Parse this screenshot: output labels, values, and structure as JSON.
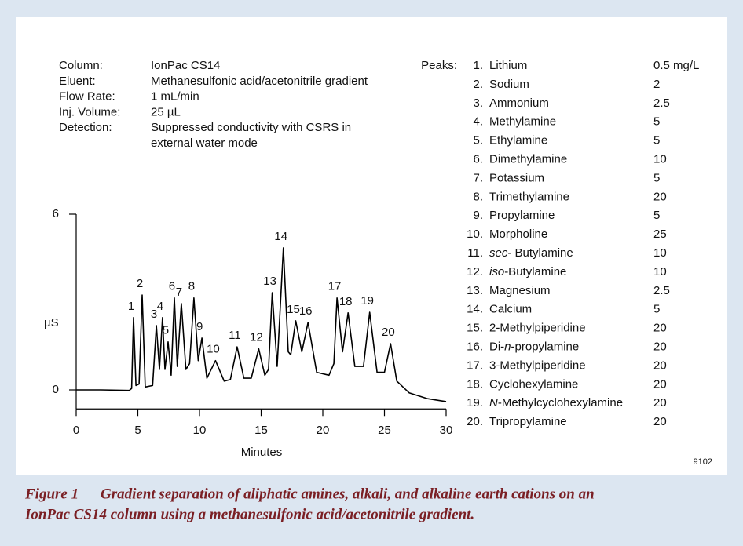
{
  "conditions": [
    {
      "label": "Column:",
      "value": [
        "IonPac CS14"
      ]
    },
    {
      "label": "Eluent:",
      "value": [
        "Methanesulfonic acid/acetonitrile gradient"
      ]
    },
    {
      "label": "Flow Rate:",
      "value": [
        "1 mL/min"
      ]
    },
    {
      "label": "Inj. Volume:",
      "value": [
        "25 µL"
      ]
    },
    {
      "label": "Detection:",
      "value": [
        "Suppressed conductivity with CSRS in",
        "external water mode"
      ]
    }
  ],
  "peaks_heading": "Peaks:",
  "peaks": [
    {
      "num": "1.",
      "name": [
        "Lithium"
      ],
      "conc": "0.5 mg/L"
    },
    {
      "num": "2.",
      "name": [
        "Sodium"
      ],
      "conc": "2"
    },
    {
      "num": "3.",
      "name": [
        "Ammonium"
      ],
      "conc": "2.5"
    },
    {
      "num": "4.",
      "name": [
        "Methylamine"
      ],
      "conc": "5"
    },
    {
      "num": "5.",
      "name": [
        "Ethylamine"
      ],
      "conc": "5"
    },
    {
      "num": "6.",
      "name": [
        "Dimethylamine"
      ],
      "conc": "10"
    },
    {
      "num": "7.",
      "name": [
        "Potassium"
      ],
      "conc": "5"
    },
    {
      "num": "8.",
      "name": [
        "Trimethylamine"
      ],
      "conc": "20"
    },
    {
      "num": "9.",
      "name": [
        "Propylamine"
      ],
      "conc": "5"
    },
    {
      "num": "10.",
      "name": [
        "Morpholine"
      ],
      "conc": "25"
    },
    {
      "num": "11.",
      "name": [
        {
          "text": "sec",
          "italic": true
        },
        "- Butylamine"
      ],
      "conc": "10"
    },
    {
      "num": "12.",
      "name": [
        {
          "text": "iso",
          "italic": true
        },
        "-Butylamine"
      ],
      "conc": "10"
    },
    {
      "num": "13.",
      "name": [
        "Magnesium"
      ],
      "conc": "2.5"
    },
    {
      "num": "14.",
      "name": [
        "Calcium"
      ],
      "conc": "5"
    },
    {
      "num": "15.",
      "name": [
        "2-Methylpiperidine"
      ],
      "conc": "20"
    },
    {
      "num": "16.",
      "name": [
        "Di-",
        {
          "text": "n",
          "italic": true
        },
        "-propylamine"
      ],
      "conc": "20"
    },
    {
      "num": "17.",
      "name": [
        "3-Methylpiperidine"
      ],
      "conc": "20"
    },
    {
      "num": "18.",
      "name": [
        "Cyclohexylamine"
      ],
      "conc": "20"
    },
    {
      "num": "19.",
      "name": [
        {
          "text": "N",
          "italic": true
        },
        "-Methylcyclohexylamine"
      ],
      "conc": "20"
    },
    {
      "num": "20.",
      "name": [
        "Tripropylamine"
      ],
      "conc": "20"
    }
  ],
  "chart_data": {
    "type": "line",
    "ylabel": "µS",
    "xlabel": "Minutes",
    "color": "#000000",
    "x": [
      0,
      2,
      4.3,
      4.5,
      4.65,
      4.85,
      5.1,
      5.35,
      5.6,
      6.2,
      6.5,
      6.75,
      7.0,
      7.2,
      7.45,
      7.7,
      7.96,
      8.2,
      8.53,
      8.9,
      9.2,
      9.55,
      9.9,
      10.2,
      10.6,
      11.3,
      12.0,
      12.5,
      13.05,
      13.6,
      14.2,
      14.8,
      15.3,
      15.6,
      15.9,
      16.3,
      16.8,
      17.2,
      17.4,
      17.8,
      18.3,
      18.8,
      19.5,
      20.5,
      20.9,
      21.15,
      21.6,
      22.05,
      22.6,
      23.3,
      23.8,
      24.4,
      25.0,
      25.5,
      26.0,
      27,
      28.5,
      30
    ],
    "values": [
      0,
      0,
      -0.02,
      0.05,
      2.47,
      0.15,
      0.2,
      3.24,
      0.1,
      0.15,
      2.2,
      0.7,
      2.47,
      0.7,
      1.64,
      0.5,
      3.14,
      0.8,
      2.95,
      0.7,
      0.9,
      3.14,
      1.0,
      1.77,
      0.4,
      1.0,
      0.3,
      0.35,
      1.47,
      0.4,
      0.4,
      1.4,
      0.5,
      0.7,
      3.32,
      0.8,
      4.85,
      1.3,
      1.2,
      2.36,
      1.3,
      2.3,
      0.6,
      0.5,
      0.9,
      3.14,
      1.3,
      2.63,
      0.8,
      0.8,
      2.65,
      0.6,
      0.6,
      1.58,
      0.3,
      -0.1,
      -0.3,
      -0.4
    ],
    "peak_labels": [
      {
        "text": "1",
        "x": 4.65,
        "y": 2.47
      },
      {
        "text": "2",
        "x": 5.35,
        "y": 3.24
      },
      {
        "text": "3",
        "x": 6.5,
        "y": 2.2
      },
      {
        "text": "4",
        "x": 7.0,
        "y": 2.47
      },
      {
        "text": "5",
        "x": 7.45,
        "y": 1.64
      },
      {
        "text": "6",
        "x": 7.96,
        "y": 3.14
      },
      {
        "text": "7",
        "x": 8.53,
        "y": 2.95
      },
      {
        "text": "8",
        "x": 9.55,
        "y": 3.14
      },
      {
        "text": "9",
        "x": 10.2,
        "y": 1.77
      },
      {
        "text": "10",
        "x": 11.3,
        "y": 1.0
      },
      {
        "text": "11",
        "x": 13.05,
        "y": 1.47
      },
      {
        "text": "12",
        "x": 14.8,
        "y": 1.4
      },
      {
        "text": "13",
        "x": 15.9,
        "y": 3.32
      },
      {
        "text": "14",
        "x": 16.8,
        "y": 4.85
      },
      {
        "text": "15",
        "x": 17.8,
        "y": 2.36
      },
      {
        "text": "16",
        "x": 18.8,
        "y": 2.3
      },
      {
        "text": "17",
        "x": 21.15,
        "y": 3.14
      },
      {
        "text": "18",
        "x": 22.05,
        "y": 2.63
      },
      {
        "text": "19",
        "x": 23.8,
        "y": 2.65
      },
      {
        "text": "20",
        "x": 25.5,
        "y": 1.58
      }
    ],
    "xlim": [
      0,
      30
    ],
    "xticks": [
      0,
      5,
      10,
      15,
      20,
      25,
      30
    ],
    "ylim": [
      -0.65,
      6
    ],
    "yticks": [
      0,
      6
    ]
  },
  "figure_code": "9102",
  "caption": {
    "label": "Figure 1",
    "lines": [
      "Gradient separation of aliphatic amines, alkali, and alkaline earth cations on an",
      "IonPac CS14 column using a methanesulfonic acid/acetonitrile gradient."
    ]
  }
}
